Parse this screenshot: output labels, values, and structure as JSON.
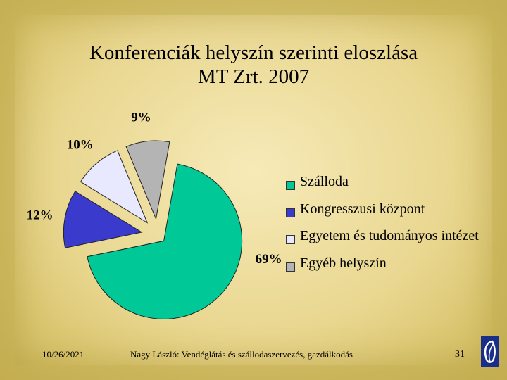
{
  "title_lines": [
    "Konferenciák helyszín szerinti eloszlása",
    "MT Zrt. 2007"
  ],
  "chart_data": {
    "type": "pie",
    "title": "Konferenciák helyszín szerinti eloszlása MT Zrt. 2007",
    "exploded": true,
    "slices": [
      {
        "label": "Szálloda",
        "value": 69,
        "value_label": "69%",
        "color": "#00c896"
      },
      {
        "label": "Kongresszusi központ",
        "value": 12,
        "value_label": "12%",
        "color": "#3a3acc"
      },
      {
        "label": "Egyetem és tudományos intézet",
        "value": 10,
        "value_label": "10%",
        "color": "#e8e8ff"
      },
      {
        "label": "Egyéb helyszín",
        "value": 9,
        "value_label": "9%",
        "color": "#b4b4b4"
      }
    ],
    "legend": "right"
  },
  "footer": {
    "date": "10/26/2021",
    "author": "Nagy László:   Vendéglátás és szállodaszervezés, gazdálkodás",
    "page": "31"
  }
}
